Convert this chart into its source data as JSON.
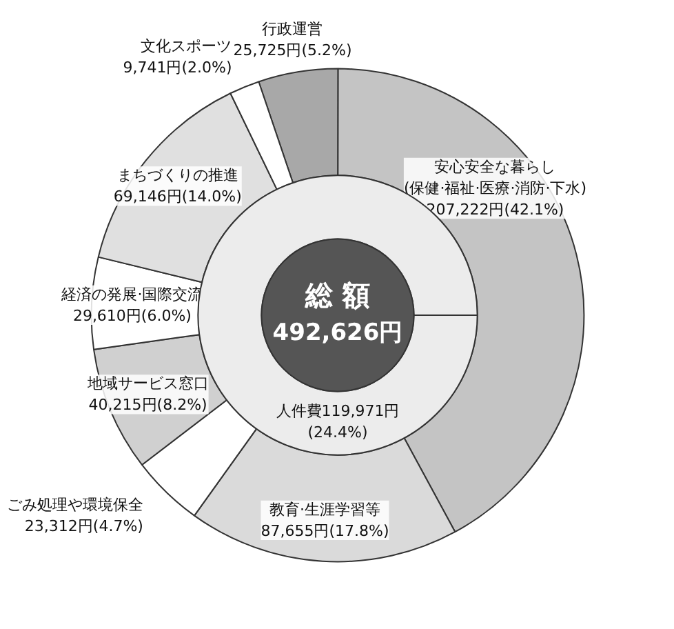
{
  "chart_data": {
    "type": "donut",
    "title": "総 額",
    "subtitle": "492,626円",
    "categories": [
      "行政運営",
      "安心安全な暮らし\n(保健·福祉·医療·消防·下水)",
      "教育·生涯学習等",
      "ごみ処理や環境保全",
      "地域サービス窓口",
      "経済の発展·国際交流",
      "まちづくりの推進",
      "文化スポーツ"
    ],
    "values": [
      25725,
      207222,
      87655,
      23312,
      40215,
      29610,
      69146,
      9741
    ],
    "colors": [
      "#a8a8a8",
      "#c4c4c4",
      "#dadada",
      "#ffffff",
      "#d0d0d0",
      "#ffffff",
      "#e0e0e0",
      "#ffffff"
    ],
    "value_labels": [
      "25,725円(5.2%)",
      "207,222円(42.1%)",
      "87,655円(17.8%)",
      "23,312円(4.7%)",
      "40,215円(8.2%)",
      "29,610円(6.0%)",
      "69,146円(14.0%)",
      "9,741円(2.0%)"
    ],
    "annotations": [
      "人件費119,971円\n(24.4%)"
    ]
  }
}
